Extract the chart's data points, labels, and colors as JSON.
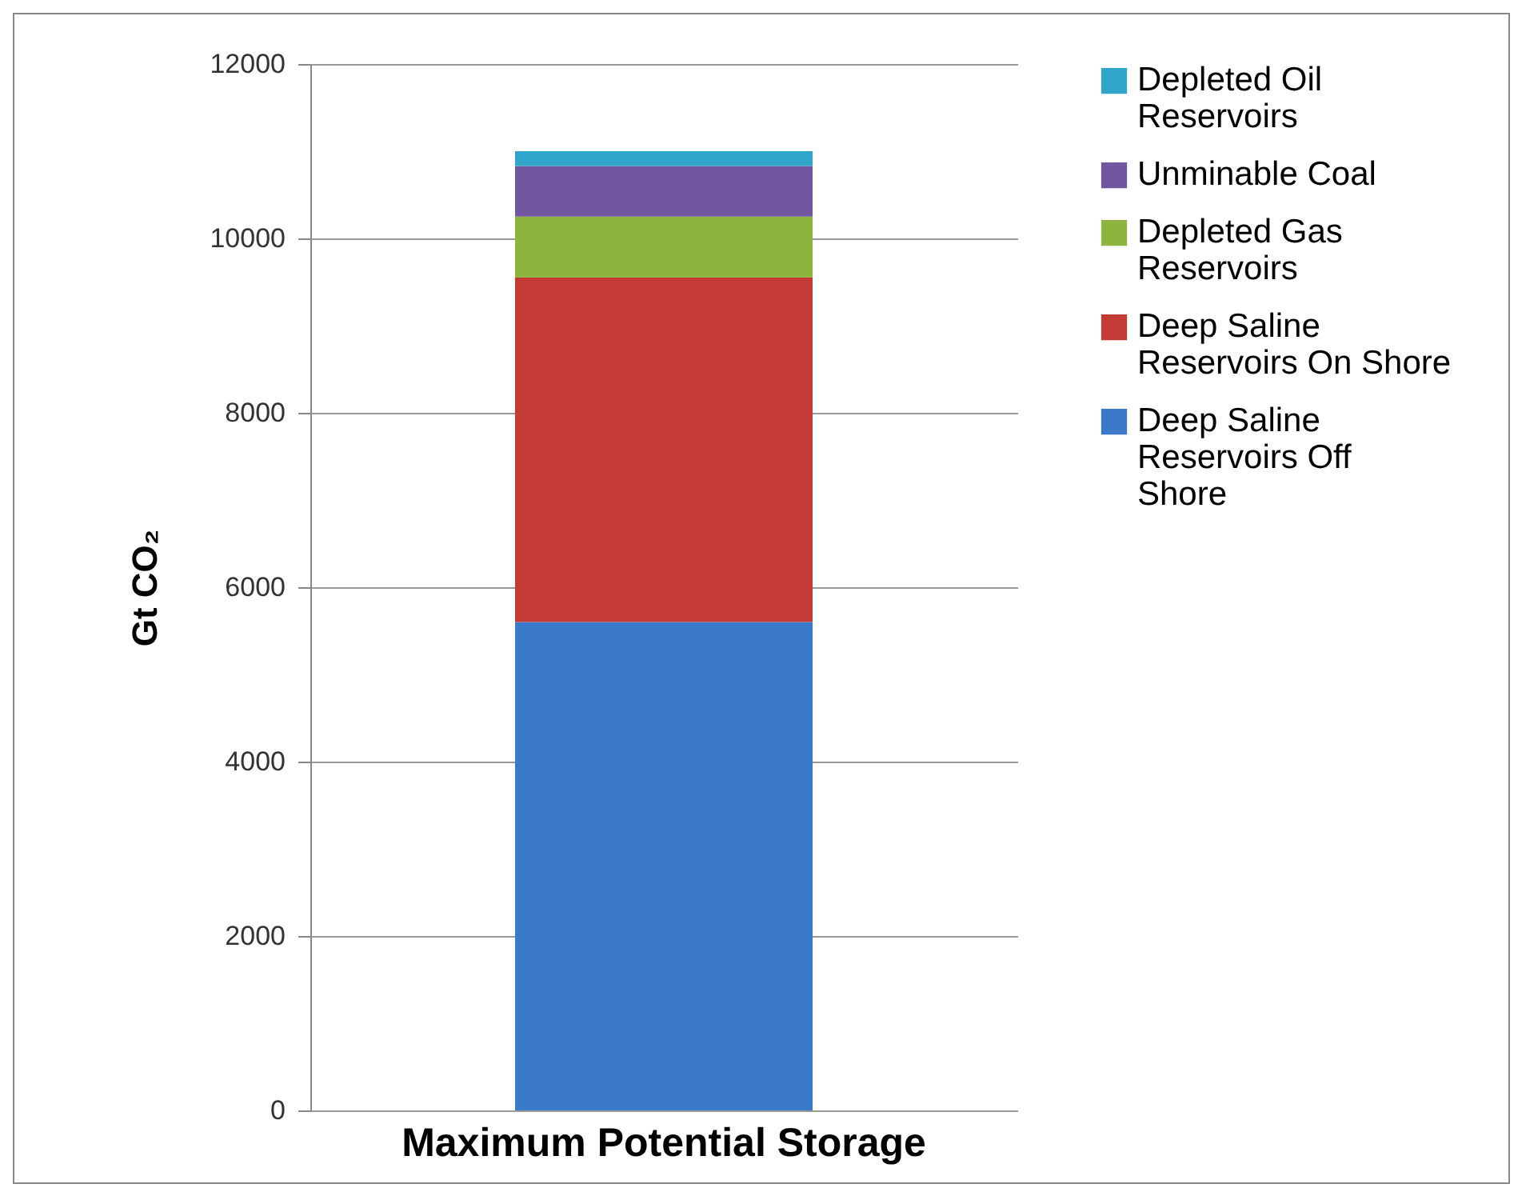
{
  "chart_data": {
    "type": "bar",
    "ylabel": "Gt CO₂",
    "categories": [
      "Maximum Potential Storage"
    ],
    "stacked": true,
    "ylim": [
      0,
      12000
    ],
    "yticks": [
      0,
      2000,
      4000,
      6000,
      8000,
      10000,
      12000
    ],
    "grid": "y",
    "legend": "right",
    "series": [
      {
        "name": "Deep Saline Reservoirs Off Shore",
        "color": "#3a7ac8",
        "values": [
          5600
        ]
      },
      {
        "name": "Deep Saline Reservoirs On Shore",
        "color": "#c43a35",
        "values": [
          3950
        ]
      },
      {
        "name": "Depleted Gas Reservoirs",
        "color": "#8db43e",
        "values": [
          700
        ]
      },
      {
        "name": "Unminable Coal",
        "color": "#7256a0",
        "values": [
          580
        ]
      },
      {
        "name": "Depleted Oil Reservoirs",
        "color": "#2fa5c9",
        "values": [
          170
        ]
      }
    ]
  }
}
